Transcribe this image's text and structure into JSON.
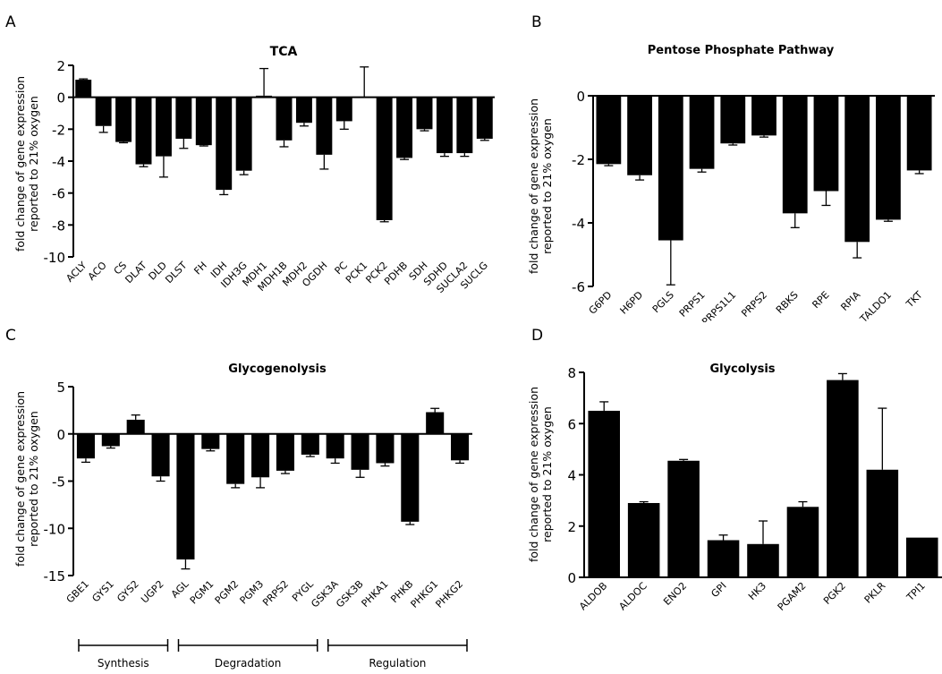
{
  "chart_data": [
    {
      "panel_label": "A",
      "type": "bar",
      "title": "TCA",
      "ylabel_lines": [
        "fold change of gene expression",
        "reported to 21% oxygen"
      ],
      "ylim": [
        -10,
        2
      ],
      "yticks": [
        2,
        0,
        -2,
        -4,
        -6,
        -8,
        -10
      ],
      "categories": [
        "ACLY",
        "ACO",
        "CS",
        "DLAT",
        "DLD",
        "DLST",
        "FH",
        "IDH",
        "IDH3G",
        "MDH1",
        "MDH1B",
        "MDH2",
        "OGDH",
        "PC",
        "PCK1",
        "PCK2",
        "PDHB",
        "SDH",
        "SDHD",
        "SUCLA2",
        "SUCLG"
      ],
      "values": [
        1.1,
        -1.8,
        -2.8,
        -4.2,
        -3.7,
        -2.6,
        -3.0,
        -5.8,
        -4.6,
        0.1,
        -2.7,
        -1.6,
        -3.6,
        -1.5,
        0.0,
        -7.7,
        -3.8,
        -2.0,
        -3.5,
        -3.5,
        -2.6
      ],
      "errors": [
        0.05,
        0.4,
        0.05,
        0.15,
        1.3,
        0.6,
        0.05,
        0.3,
        0.25,
        1.7,
        0.4,
        0.2,
        0.9,
        0.5,
        1.9,
        0.1,
        0.1,
        0.1,
        0.2,
        0.2,
        0.1
      ],
      "bar_color": "#000000"
    },
    {
      "panel_label": "B",
      "type": "bar",
      "title": "Pentose Phosphate Pathway",
      "ylabel_lines": [
        "fold change of gene expression",
        "reported to 21% oxygen"
      ],
      "ylim": [
        -6,
        0
      ],
      "yticks": [
        0,
        -2,
        -4,
        -6
      ],
      "categories": [
        "G6PD",
        "H6PD",
        "PGLS",
        "PRPS1",
        "PRPS1L1",
        "PRPS2",
        "RBKS",
        "RPE",
        "RPIA",
        "TALDO1",
        "TKT"
      ],
      "values": [
        -2.15,
        -2.5,
        -4.55,
        -2.3,
        -1.5,
        -1.25,
        -3.7,
        -3.0,
        -4.6,
        -3.9,
        -2.35
      ],
      "errors": [
        0.05,
        0.15,
        1.4,
        0.1,
        0.05,
        0.05,
        0.45,
        0.45,
        0.5,
        0.05,
        0.1
      ],
      "bar_color": "#000000"
    },
    {
      "panel_label": "C",
      "type": "bar",
      "title": "Glycogenolysis",
      "ylabel_lines": [
        "fold change of gene expression",
        "reported to 21% oxygen"
      ],
      "ylim": [
        -15,
        5
      ],
      "yticks": [
        5,
        0,
        -5,
        -10,
        -15
      ],
      "categories": [
        "GBE1",
        "GYS1",
        "GYS2",
        "UGP2",
        "AGL",
        "PGM1",
        "PGM2",
        "PGM3",
        "PRPS2",
        "PYGL",
        "GSK3A",
        "GSK3B",
        "PHKA1",
        "PHKB",
        "PHKG1",
        "PHKG2"
      ],
      "values": [
        -2.6,
        -1.3,
        1.5,
        -4.5,
        -13.3,
        -1.6,
        -5.3,
        -4.6,
        -3.9,
        -2.2,
        -2.6,
        -3.8,
        -3.1,
        -9.3,
        2.3,
        -2.8
      ],
      "errors": [
        0.4,
        0.2,
        0.5,
        0.5,
        1.0,
        0.2,
        0.4,
        1.1,
        0.3,
        0.2,
        0.5,
        0.8,
        0.3,
        0.3,
        0.4,
        0.3
      ],
      "groups": [
        {
          "label": "Synthesis",
          "from": 0,
          "to": 3
        },
        {
          "label": "Degradation",
          "from": 4,
          "to": 9
        },
        {
          "label": "Regulation",
          "from": 10,
          "to": 15
        }
      ],
      "bar_color": "#000000"
    },
    {
      "panel_label": "D",
      "type": "bar",
      "title": "Glycolysis",
      "ylabel_lines": [
        "fold change of gene expression",
        "reported to 21% oxygen"
      ],
      "ylim": [
        0,
        8
      ],
      "yticks": [
        8,
        6,
        4,
        2,
        0
      ],
      "categories": [
        "ALDOB",
        "ALDOC",
        "ENO2",
        "GPI",
        "HK3",
        "PGAM2",
        "PGK2",
        "PKLR",
        "TPI1"
      ],
      "values": [
        6.5,
        2.9,
        4.55,
        1.45,
        1.3,
        2.75,
        7.7,
        4.2,
        1.55
      ],
      "errors": [
        0.35,
        0.05,
        0.05,
        0.2,
        0.9,
        0.2,
        0.25,
        2.4,
        0.0
      ],
      "bar_color": "#000000"
    }
  ]
}
